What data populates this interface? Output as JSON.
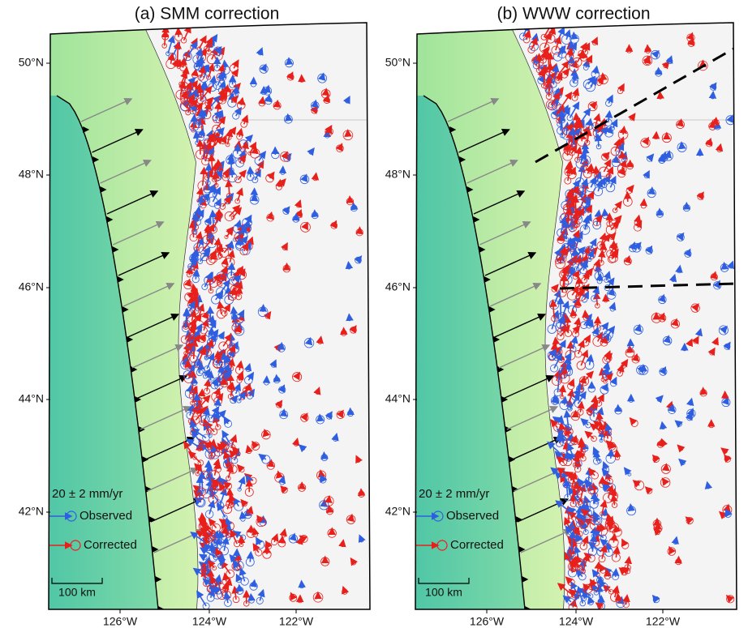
{
  "panels": [
    {
      "title": "(a) SMM correction",
      "lat_labels": [
        "50°N",
        "48°N",
        "46°N",
        "44°N",
        "42°N"
      ],
      "lon_labels": [
        "126°W",
        "124°W",
        "122°W"
      ],
      "legend": {
        "scale": "20 ± 2 mm/yr",
        "observed": "Observed",
        "corrected": "Corrected"
      },
      "scale_bar": "100 km"
    },
    {
      "title": "(b) WWW correction",
      "lat_labels": [
        "50°N",
        "48°N",
        "46°N",
        "44°N",
        "42°N"
      ],
      "lon_labels": [
        "126°W",
        "124°W",
        "122°W"
      ],
      "legend": {
        "scale": "20 ± 2 mm/yr",
        "observed": "Observed",
        "corrected": "Corrected"
      },
      "scale_bar": "100 km"
    }
  ]
}
